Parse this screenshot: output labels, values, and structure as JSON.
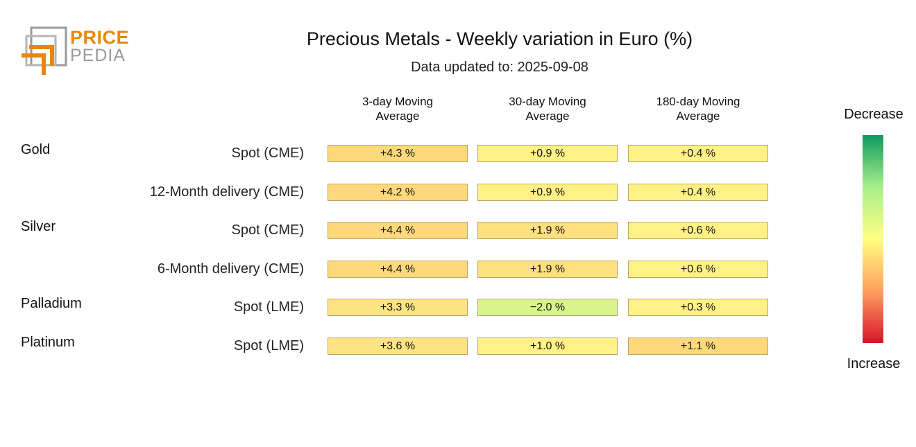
{
  "logo": {
    "word1": "PRICE",
    "word2": "PEDIA"
  },
  "chart_data": {
    "type": "table",
    "title": "Precious Metals - Weekly variation in Euro (%)",
    "subtitle": "Data updated to: 2025-09-08",
    "columns": [
      "3-day Moving Average",
      "30-day Moving Average",
      "180-day Moving Average"
    ],
    "column_lines": [
      [
        "3-day Moving",
        "Average"
      ],
      [
        "30-day Moving",
        "Average"
      ],
      [
        "180-day Moving",
        "Average"
      ]
    ],
    "rows": [
      {
        "group": "Gold",
        "label": "Spot (CME)",
        "values": [
          4.3,
          0.9,
          0.4
        ],
        "texts": [
          "+4.3 %",
          "+0.9 %",
          "+0.4 %"
        ],
        "colors": [
          "#fdd97c",
          "#fff185",
          "#fff185"
        ]
      },
      {
        "group": "",
        "label": "12-Month delivery (CME)",
        "values": [
          4.2,
          0.9,
          0.4
        ],
        "texts": [
          "+4.2 %",
          "+0.9 %",
          "+0.4 %"
        ],
        "colors": [
          "#fdd97c",
          "#fff185",
          "#fff185"
        ]
      },
      {
        "group": "Silver",
        "label": "Spot (CME)",
        "values": [
          4.4,
          1.9,
          0.6
        ],
        "texts": [
          "+4.4 %",
          "+1.9 %",
          "+0.6 %"
        ],
        "colors": [
          "#fdd97c",
          "#fee07f",
          "#fff185"
        ]
      },
      {
        "group": "",
        "label": "6-Month delivery (CME)",
        "values": [
          4.4,
          1.9,
          0.6
        ],
        "texts": [
          "+4.4 %",
          "+1.9 %",
          "+0.6 %"
        ],
        "colors": [
          "#fdd97c",
          "#fee07f",
          "#fff185"
        ]
      },
      {
        "group": "Palladium",
        "label": "Spot (LME)",
        "values": [
          3.3,
          -2.0,
          0.3
        ],
        "texts": [
          "+3.3 %",
          "−2.0 %",
          "+0.3 %"
        ],
        "colors": [
          "#fee383",
          "#d8f58c",
          "#fff185"
        ]
      },
      {
        "group": "Platinum",
        "label": "Spot (LME)",
        "values": [
          3.6,
          1.0,
          1.1
        ],
        "texts": [
          "+3.6 %",
          "+1.0 %",
          "+1.1 %"
        ],
        "colors": [
          "#fee383",
          "#fff185",
          "#fdd97c"
        ]
      }
    ],
    "legend": {
      "top_label": "Decrease",
      "bottom_label": "Increase",
      "gradient": [
        "#0f9a5f",
        "#a8ef8c",
        "#ffff80",
        "#ff9f5f",
        "#d8142a"
      ]
    }
  }
}
